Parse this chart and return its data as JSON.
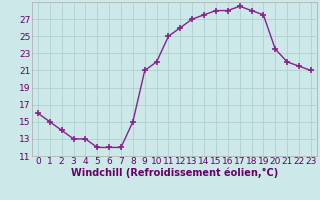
{
  "x": [
    0,
    1,
    2,
    3,
    4,
    5,
    6,
    7,
    8,
    9,
    10,
    11,
    12,
    13,
    14,
    15,
    16,
    17,
    18,
    19,
    20,
    21,
    22,
    23
  ],
  "y": [
    16,
    15,
    14,
    13,
    13,
    12,
    12,
    12,
    15,
    21,
    22,
    25,
    26,
    27,
    27.5,
    28,
    28,
    28.5,
    28,
    27.5,
    23.5,
    22,
    21.5,
    21
  ],
  "line_color": "#882288",
  "marker": "+",
  "marker_size": 4,
  "bg_color": "#cce8e8",
  "grid_color": "#aacccc",
  "xlabel": "Windchill (Refroidissement éolien,°C)",
  "xlim": [
    -0.5,
    23.5
  ],
  "ylim": [
    11,
    29
  ],
  "yticks": [
    11,
    13,
    15,
    17,
    19,
    21,
    23,
    25,
    27
  ],
  "xticks": [
    0,
    1,
    2,
    3,
    4,
    5,
    6,
    7,
    8,
    9,
    10,
    11,
    12,
    13,
    14,
    15,
    16,
    17,
    18,
    19,
    20,
    21,
    22,
    23
  ],
  "tick_fontsize": 6.5,
  "xlabel_fontsize": 7,
  "linewidth": 1.0,
  "marker_color": "#882288"
}
